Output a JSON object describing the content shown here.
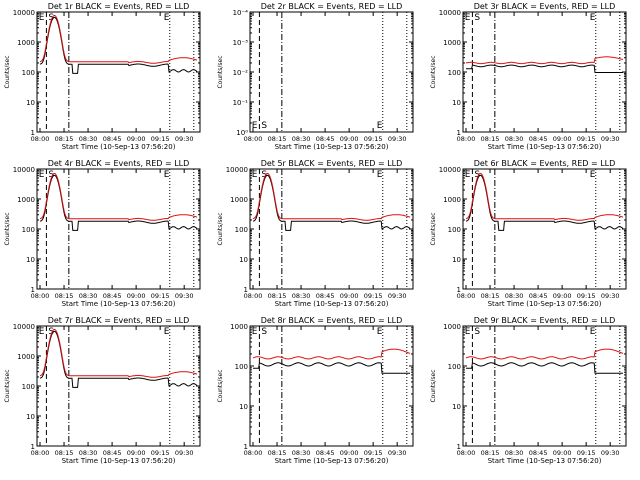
{
  "colors": {
    "events": "#000000",
    "lld": "#dd1111",
    "axis": "#000000",
    "bg": "#ffffff"
  },
  "time_labels": [
    "08:00",
    "08:15",
    "08:30",
    "08:45",
    "09:00",
    "09:15",
    "09:30"
  ],
  "xlabel": "Start Time (10-Sep-13 07:56:20)",
  "ylabel": "Counts/sec",
  "ylabels_small": [
    "1",
    "10",
    "100",
    "1000",
    "10000"
  ],
  "ylabels_tiny": [
    "10⁻⁴",
    "10⁻³",
    "10⁻²",
    "10⁻¹",
    "10⁰"
  ],
  "flag_letters": {
    "E": "E",
    "S": "S"
  },
  "panels": [
    {
      "title": "Det 1r BLACK = Events, RED = LLD",
      "type": "flare",
      "flare_peak": 6500
    },
    {
      "title": "Det 2r BLACK = Events, RED = LLD",
      "type": "empty"
    },
    {
      "title": "Det 3r BLACK = Events, RED = LLD",
      "type": "flat"
    },
    {
      "title": "Det 4r BLACK = Events, RED = LLD",
      "type": "flare",
      "flare_peak": 6000
    },
    {
      "title": "Det 5r BLACK = Events, RED = LLD",
      "type": "flare",
      "flare_peak": 6000
    },
    {
      "title": "Det 6r BLACK = Events, RED = LLD",
      "type": "flare",
      "flare_peak": 6000
    },
    {
      "title": "Det 7r BLACK = Events, RED = LLD",
      "type": "flare",
      "flare_peak": 6500
    },
    {
      "title": "Det 8r BLACK = Events, RED = LLD",
      "type": "flat_low"
    },
    {
      "title": "Det 9r BLACK = Events, RED = LLD",
      "type": "flat_low"
    }
  ],
  "chart_data": [
    {
      "type": "line",
      "title": "Det 1r BLACK = Events, RED = LLD",
      "xlabel": "Start Time (10-Sep-13 07:56:20)",
      "ylabel": "Counts/sec",
      "yscale": "log",
      "ylim": [
        1,
        10000
      ],
      "x": [
        "08:00",
        "08:05",
        "08:09",
        "08:13",
        "08:16",
        "08:20",
        "08:30",
        "08:45",
        "09:00",
        "09:10",
        "09:20",
        "09:30"
      ],
      "series": [
        {
          "name": "Events",
          "values": [
            200,
            1500,
            6500,
            800,
            170,
            180,
            175,
            190,
            200,
            130,
            120,
            160
          ]
        },
        {
          "name": "LLD",
          "values": [
            250,
            1800,
            7500,
            900,
            210,
            220,
            215,
            220,
            230,
            260,
            300,
            280
          ]
        }
      ]
    },
    {
      "type": "line",
      "title": "Det 2r BLACK = Events, RED = LLD",
      "xlabel": "Start Time (10-Sep-13 07:56:20)",
      "ylabel": "Counts/sec",
      "yscale": "log",
      "ylim": [
        0.0001,
        1
      ],
      "series": []
    },
    {
      "type": "line",
      "title": "Det 3r BLACK = Events, RED = LLD",
      "xlabel": "Start Time (10-Sep-13 07:56:20)",
      "ylabel": "Counts/sec",
      "yscale": "log",
      "ylim": [
        1,
        10000
      ],
      "x": [
        "08:00",
        "08:10",
        "08:20",
        "08:30",
        "08:45",
        "09:00",
        "09:15",
        "09:30"
      ],
      "series": [
        {
          "name": "Events",
          "values": [
            160,
            170,
            160,
            150,
            155,
            160,
            90,
            120
          ]
        },
        {
          "name": "LLD",
          "values": [
            200,
            210,
            200,
            190,
            200,
            210,
            230,
            260
          ]
        }
      ]
    },
    {
      "type": "line",
      "title": "Det 4r BLACK = Events, RED = LLD",
      "xlabel": "Start Time (10-Sep-13 07:56:20)",
      "ylabel": "Counts/sec",
      "yscale": "log",
      "ylim": [
        1,
        10000
      ],
      "x": [
        "08:00",
        "08:05",
        "08:09",
        "08:13",
        "08:16",
        "08:30",
        "08:45",
        "09:00",
        "09:15",
        "09:30"
      ],
      "series": [
        {
          "name": "Events",
          "values": [
            180,
            1400,
            6000,
            700,
            170,
            170,
            175,
            180,
            110,
            130
          ]
        },
        {
          "name": "LLD",
          "values": [
            220,
            1700,
            7000,
            800,
            200,
            200,
            210,
            220,
            250,
            280
          ]
        }
      ]
    },
    {
      "type": "line",
      "title": "Det 5r BLACK = Events, RED = LLD",
      "xlabel": "Start Time (10-Sep-13 07:56:20)",
      "ylabel": "Counts/sec",
      "yscale": "log",
      "ylim": [
        1,
        10000
      ],
      "x": [
        "08:00",
        "08:05",
        "08:09",
        "08:13",
        "08:16",
        "08:30",
        "08:45",
        "09:00",
        "09:15",
        "09:30"
      ],
      "series": [
        {
          "name": "Events",
          "values": [
            180,
            1400,
            6000,
            700,
            170,
            170,
            175,
            180,
            110,
            130
          ]
        },
        {
          "name": "LLD",
          "values": [
            220,
            1700,
            7000,
            800,
            200,
            200,
            210,
            220,
            250,
            280
          ]
        }
      ]
    },
    {
      "type": "line",
      "title": "Det 6r BLACK = Events, RED = LLD",
      "xlabel": "Start Time (10-Sep-13 07:56:20)",
      "ylabel": "Counts/sec",
      "yscale": "log",
      "ylim": [
        1,
        10000
      ],
      "x": [
        "08:00",
        "08:05",
        "08:09",
        "08:13",
        "08:16",
        "08:30",
        "08:45",
        "09:00",
        "09:15",
        "09:30"
      ],
      "series": [
        {
          "name": "Events",
          "values": [
            180,
            1400,
            6000,
            700,
            170,
            170,
            175,
            180,
            110,
            130
          ]
        },
        {
          "name": "LLD",
          "values": [
            220,
            1700,
            7000,
            800,
            200,
            200,
            210,
            220,
            250,
            280
          ]
        }
      ]
    },
    {
      "type": "line",
      "title": "Det 7r BLACK = Events, RED = LLD",
      "xlabel": "Start Time (10-Sep-13 07:56:20)",
      "ylabel": "Counts/sec",
      "yscale": "log",
      "ylim": [
        1,
        10000
      ],
      "x": [
        "08:00",
        "08:05",
        "08:09",
        "08:13",
        "08:16",
        "08:30",
        "08:45",
        "09:00",
        "09:15",
        "09:30"
      ],
      "series": [
        {
          "name": "Events",
          "values": [
            200,
            1500,
            6500,
            800,
            180,
            170,
            180,
            190,
            120,
            150
          ]
        },
        {
          "name": "LLD",
          "values": [
            240,
            1800,
            7500,
            900,
            210,
            210,
            220,
            230,
            260,
            290
          ]
        }
      ]
    },
    {
      "type": "line",
      "title": "Det 8r BLACK = Events, RED = LLD",
      "xlabel": "Start Time (10-Sep-13 07:56:20)",
      "ylabel": "Counts/sec",
      "yscale": "log",
      "ylim": [
        1,
        1000
      ],
      "x": [
        "08:00",
        "08:10",
        "08:20",
        "08:30",
        "08:45",
        "09:00",
        "09:15",
        "09:30"
      ],
      "series": [
        {
          "name": "Events",
          "values": [
            110,
            120,
            115,
            110,
            115,
            120,
            70,
            90
          ]
        },
        {
          "name": "LLD",
          "values": [
            160,
            170,
            165,
            160,
            170,
            200,
            280,
            220
          ]
        }
      ]
    },
    {
      "type": "line",
      "title": "Det 9r BLACK = Events, RED = LLD",
      "xlabel": "Start Time (10-Sep-13 07:56:20)",
      "ylabel": "Counts/sec",
      "yscale": "log",
      "ylim": [
        1,
        1000
      ],
      "x": [
        "08:00",
        "08:10",
        "08:20",
        "08:30",
        "08:45",
        "09:00",
        "09:15",
        "09:30"
      ],
      "series": [
        {
          "name": "Events",
          "values": [
            110,
            120,
            115,
            110,
            115,
            120,
            70,
            90
          ]
        },
        {
          "name": "LLD",
          "values": [
            160,
            170,
            165,
            160,
            170,
            200,
            280,
            220
          ]
        }
      ]
    }
  ]
}
